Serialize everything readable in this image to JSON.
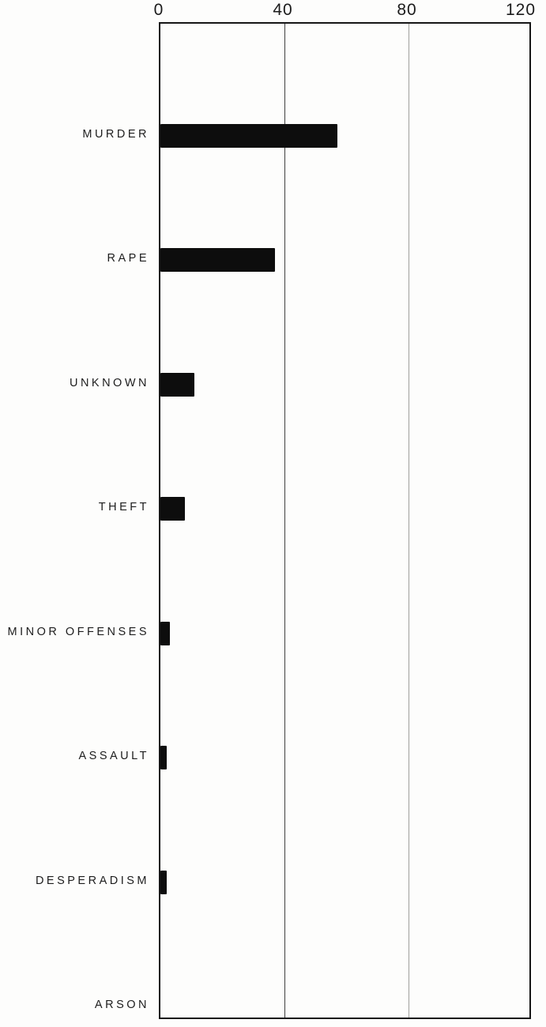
{
  "colors": {
    "background": "#fdfdfc",
    "bar": "#0d0d0d",
    "axis_border": "#161616",
    "gridline_dark": "#3f3f3f",
    "gridline_light": "#a0a09c",
    "text": "#1d1d1d"
  },
  "chart_data": {
    "type": "bar",
    "orientation": "horizontal",
    "title": "",
    "xlabel": "",
    "ylabel": "",
    "categories": [
      "MURDER",
      "RAPE",
      "UNKNOWN",
      "THEFT",
      "MINOR OFFENSES",
      "ASSAULT",
      "DESPERADISM",
      "ARSON"
    ],
    "values": [
      57,
      37,
      11,
      8,
      3,
      2,
      2,
      0
    ],
    "xlim": [
      0,
      120
    ],
    "xticks": [
      0,
      40,
      80,
      120
    ],
    "xtick_labels": [
      "0",
      "40",
      "80",
      "120"
    ],
    "tick_position": "top",
    "grid": true,
    "gridlines": [
      {
        "x": 40,
        "shade": "dark"
      },
      {
        "x": 80,
        "shade": "light"
      }
    ],
    "legend": null
  }
}
